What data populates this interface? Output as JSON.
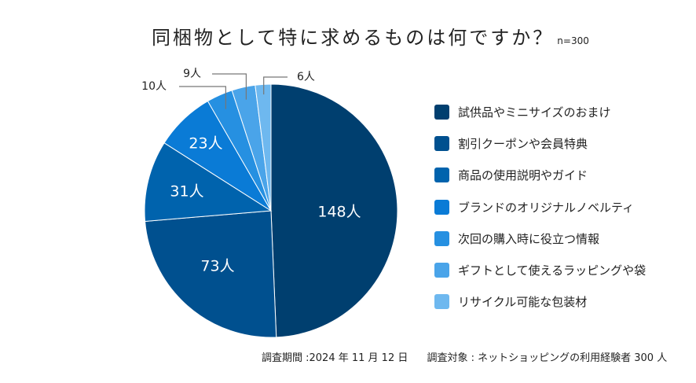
{
  "chart_data": {
    "type": "pie",
    "title": "同梱物として特に求めるものは何ですか？",
    "sample_size": "n=300",
    "unit": "人",
    "start": "top, clockwise",
    "categories": [
      "試供品やミニサイズのおまけ",
      "割引クーポンや会員特典",
      "商品の使用説明やガイド",
      "ブランドのオリジナルノベルティ",
      "次回の購入時に役立つ情報",
      "ギフトとして使えるラッピングや袋",
      "リサイクル可能な包装材"
    ],
    "values": [
      148,
      73,
      31,
      23,
      10,
      9,
      6
    ],
    "data_labels": [
      "148人",
      "73人",
      "31人",
      "23人",
      "10人",
      "9人",
      "6人"
    ],
    "colors": [
      "#003f6f",
      "#00508f",
      "#0063ad",
      "#0a7bd6",
      "#2690e1",
      "#4aa4e9",
      "#6eb8ef"
    ],
    "legend_position": "right"
  },
  "footer": {
    "period": "調査期間 :2024 年 11 月 12 日",
    "target": "調査対象 : ネットショッピングの利用経験者 300 人"
  }
}
